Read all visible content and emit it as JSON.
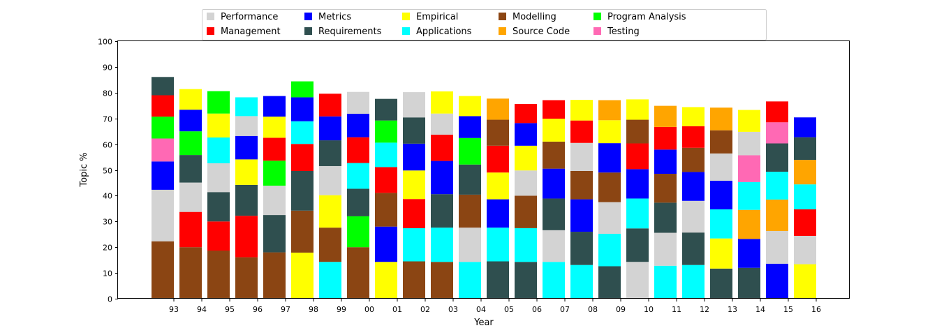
{
  "chart_data": {
    "type": "bar",
    "stacked": true,
    "xlabel": "Year",
    "ylabel": "Topic %",
    "ylim": [
      0,
      100
    ],
    "yticks": [
      0,
      10,
      20,
      30,
      40,
      50,
      60,
      70,
      80,
      90,
      100
    ],
    "categories": [
      "93",
      "94",
      "95",
      "96",
      "97",
      "98",
      "99",
      "00",
      "01",
      "02",
      "03",
      "04",
      "05",
      "06",
      "07",
      "08",
      "09",
      "10",
      "11",
      "12",
      "13",
      "14",
      "15",
      "16"
    ],
    "legend": {
      "placement": "top-center",
      "entries": [
        {
          "name": "Performance",
          "color": "#d3d3d3"
        },
        {
          "name": "Management",
          "color": "#ff0000"
        },
        {
          "name": "Metrics",
          "color": "#0000ff"
        },
        {
          "name": "Requirements",
          "color": "#2f4f4f"
        },
        {
          "name": "Empirical",
          "color": "#ffff00"
        },
        {
          "name": "Applications",
          "color": "#00ffff"
        },
        {
          "name": "Modelling",
          "color": "#8b4513"
        },
        {
          "name": "Source Code",
          "color": "#ffa500"
        },
        {
          "name": "Program Analysis",
          "color": "#00ff00"
        },
        {
          "name": "Testing",
          "color": "#ff69b4"
        }
      ]
    },
    "stacks": [
      [
        [
          "Modelling",
          22.3
        ],
        [
          "Performance",
          20.0
        ],
        [
          "Metrics",
          11.0
        ],
        [
          "Testing",
          8.9
        ],
        [
          "Program Analysis",
          8.5
        ],
        [
          "Management",
          8.3
        ],
        [
          "Requirements",
          7.1
        ]
      ],
      [
        [
          "Modelling",
          20.0
        ],
        [
          "Management",
          13.7
        ],
        [
          "Performance",
          11.4
        ],
        [
          "Requirements",
          10.7
        ],
        [
          "Program Analysis",
          9.2
        ],
        [
          "Metrics",
          8.4
        ],
        [
          "Empirical",
          8.0
        ]
      ],
      [
        [
          "Modelling",
          18.7
        ],
        [
          "Management",
          11.3
        ],
        [
          "Requirements",
          11.4
        ],
        [
          "Performance",
          11.2
        ],
        [
          "Applications",
          10.0
        ],
        [
          "Empirical",
          9.3
        ],
        [
          "Program Analysis",
          8.7
        ]
      ],
      [
        [
          "Modelling",
          16.1
        ],
        [
          "Management",
          16.1
        ],
        [
          "Requirements",
          12.0
        ],
        [
          "Empirical",
          9.9
        ],
        [
          "Metrics",
          9.1
        ],
        [
          "Performance",
          7.7
        ],
        [
          "Applications",
          7.3
        ]
      ],
      [
        [
          "Modelling",
          18.0
        ],
        [
          "Requirements",
          14.5
        ],
        [
          "Performance",
          11.4
        ],
        [
          "Program Analysis",
          9.7
        ],
        [
          "Management",
          8.9
        ],
        [
          "Empirical",
          8.2
        ],
        [
          "Metrics",
          8.0
        ]
      ],
      [
        [
          "Empirical",
          17.9
        ],
        [
          "Modelling",
          16.3
        ],
        [
          "Requirements",
          15.4
        ],
        [
          "Management",
          10.5
        ],
        [
          "Applications",
          8.8
        ],
        [
          "Metrics",
          9.3
        ],
        [
          "Program Analysis",
          6.2
        ]
      ],
      [
        [
          "Applications",
          14.3
        ],
        [
          "Modelling",
          13.3
        ],
        [
          "Empirical",
          12.6
        ],
        [
          "Performance",
          11.3
        ],
        [
          "Requirements",
          10.0
        ],
        [
          "Metrics",
          9.3
        ],
        [
          "Management",
          8.8
        ]
      ],
      [
        [
          "Modelling",
          20.0
        ],
        [
          "Program Analysis",
          12.0
        ],
        [
          "Requirements",
          10.7
        ],
        [
          "Applications",
          10.0
        ],
        [
          "Management",
          10.0
        ],
        [
          "Metrics",
          9.1
        ],
        [
          "Performance",
          8.5
        ]
      ],
      [
        [
          "Empirical",
          14.3
        ],
        [
          "Metrics",
          13.7
        ],
        [
          "Modelling",
          13.1
        ],
        [
          "Management",
          10.0
        ],
        [
          "Applications",
          9.5
        ],
        [
          "Program Analysis",
          8.6
        ],
        [
          "Requirements",
          8.4
        ]
      ],
      [
        [
          "Modelling",
          14.5
        ],
        [
          "Applications",
          12.9
        ],
        [
          "Management",
          11.3
        ],
        [
          "Empirical",
          11.1
        ],
        [
          "Metrics",
          10.4
        ],
        [
          "Requirements",
          10.2
        ],
        [
          "Performance",
          9.8
        ]
      ],
      [
        [
          "Modelling",
          14.3
        ],
        [
          "Applications",
          13.3
        ],
        [
          "Requirements",
          13.0
        ],
        [
          "Metrics",
          12.9
        ],
        [
          "Management",
          10.2
        ],
        [
          "Performance",
          8.2
        ],
        [
          "Empirical",
          8.6
        ]
      ],
      [
        [
          "Applications",
          14.3
        ],
        [
          "Performance",
          13.3
        ],
        [
          "Modelling",
          12.8
        ],
        [
          "Requirements",
          11.7
        ],
        [
          "Program Analysis",
          10.3
        ],
        [
          "Metrics",
          8.5
        ],
        [
          "Empirical",
          7.8
        ]
      ],
      [
        [
          "Requirements",
          14.5
        ],
        [
          "Applications",
          13.1
        ],
        [
          "Metrics",
          11.0
        ],
        [
          "Empirical",
          10.4
        ],
        [
          "Management",
          10.4
        ],
        [
          "Modelling",
          10.1
        ],
        [
          "Source Code",
          8.2
        ]
      ],
      [
        [
          "Requirements",
          14.3
        ],
        [
          "Applications",
          13.1
        ],
        [
          "Modelling",
          12.6
        ],
        [
          "Performance",
          9.8
        ],
        [
          "Empirical",
          9.6
        ],
        [
          "Metrics",
          8.8
        ],
        [
          "Management",
          7.4
        ]
      ],
      [
        [
          "Applications",
          14.3
        ],
        [
          "Performance",
          12.3
        ],
        [
          "Requirements",
          12.3
        ],
        [
          "Metrics",
          11.6
        ],
        [
          "Modelling",
          10.5
        ],
        [
          "Empirical",
          8.9
        ],
        [
          "Management",
          7.2
        ]
      ],
      [
        [
          "Applications",
          13.1
        ],
        [
          "Requirements",
          12.9
        ],
        [
          "Metrics",
          12.6
        ],
        [
          "Modelling",
          11.0
        ],
        [
          "Performance",
          10.9
        ],
        [
          "Management",
          8.7
        ],
        [
          "Empirical",
          8.0
        ]
      ],
      [
        [
          "Requirements",
          12.6
        ],
        [
          "Applications",
          12.6
        ],
        [
          "Performance",
          12.3
        ],
        [
          "Modelling",
          11.5
        ],
        [
          "Metrics",
          11.4
        ],
        [
          "Empirical",
          8.9
        ],
        [
          "Source Code",
          7.8
        ]
      ],
      [
        [
          "Performance",
          14.3
        ],
        [
          "Requirements",
          13.0
        ],
        [
          "Applications",
          11.6
        ],
        [
          "Metrics",
          11.4
        ],
        [
          "Management",
          10.0
        ],
        [
          "Modelling",
          9.2
        ],
        [
          "Empirical",
          7.9
        ]
      ],
      [
        [
          "Applications",
          12.8
        ],
        [
          "Performance",
          12.8
        ],
        [
          "Requirements",
          11.7
        ],
        [
          "Modelling",
          11.2
        ],
        [
          "Metrics",
          9.4
        ],
        [
          "Management",
          8.8
        ],
        [
          "Source Code",
          8.2
        ]
      ],
      [
        [
          "Applications",
          13.1
        ],
        [
          "Requirements",
          12.6
        ],
        [
          "Performance",
          12.3
        ],
        [
          "Metrics",
          11.2
        ],
        [
          "Modelling",
          9.4
        ],
        [
          "Management",
          8.4
        ],
        [
          "Empirical",
          7.4
        ]
      ],
      [
        [
          "Requirements",
          11.7
        ],
        [
          "Empirical",
          11.7
        ],
        [
          "Applications",
          11.3
        ],
        [
          "Metrics",
          11.1
        ],
        [
          "Performance",
          10.6
        ],
        [
          "Modelling",
          9.0
        ],
        [
          "Source Code",
          8.8
        ]
      ],
      [
        [
          "Requirements",
          12.0
        ],
        [
          "Metrics",
          11.2
        ],
        [
          "Source Code",
          11.3
        ],
        [
          "Applications",
          10.8
        ],
        [
          "Testing",
          10.4
        ],
        [
          "Performance",
          9.1
        ],
        [
          "Empirical",
          8.5
        ]
      ],
      [
        [
          "Metrics",
          13.6
        ],
        [
          "Performance",
          12.7
        ],
        [
          "Source Code",
          12.2
        ],
        [
          "Applications",
          10.8
        ],
        [
          "Requirements",
          11.0
        ],
        [
          "Testing",
          8.2
        ],
        [
          "Management",
          8.1
        ]
      ],
      [
        [
          "Empirical",
          13.4
        ],
        [
          "Performance",
          11.0
        ],
        [
          "Management",
          10.3
        ],
        [
          "Applications",
          9.7
        ],
        [
          "Source Code",
          9.5
        ],
        [
          "Requirements",
          8.8
        ],
        [
          "Metrics",
          7.7
        ]
      ]
    ]
  }
}
